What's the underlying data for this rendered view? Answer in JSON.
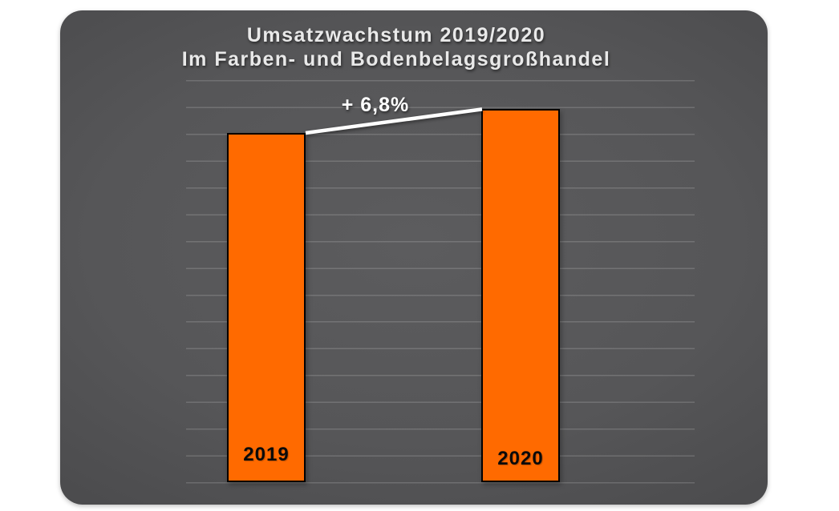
{
  "panel": {
    "background_center_color": "#5c5c5e",
    "background_edge_color": "#2b2b2d"
  },
  "chart_data": {
    "type": "bar",
    "title_line1": "Umsatzwachstum 2019/2020",
    "title_line2": "Im Farben- und Bodenbelagsgroßhandel",
    "categories": [
      "2019",
      "2020"
    ],
    "values": [
      100,
      106.8
    ],
    "unit": "index (2019 = 100, no numeric axis shown)",
    "growth_label": "+ 6,8%",
    "growth_percent": 6.8,
    "bar_color": "#FF6A00",
    "bar_border_color": "#000000",
    "connector_color": "#ffffff",
    "xlabel": "",
    "ylabel": "",
    "ylim": [
      0,
      115
    ],
    "grid": "horizontal",
    "legend_position": "none"
  }
}
